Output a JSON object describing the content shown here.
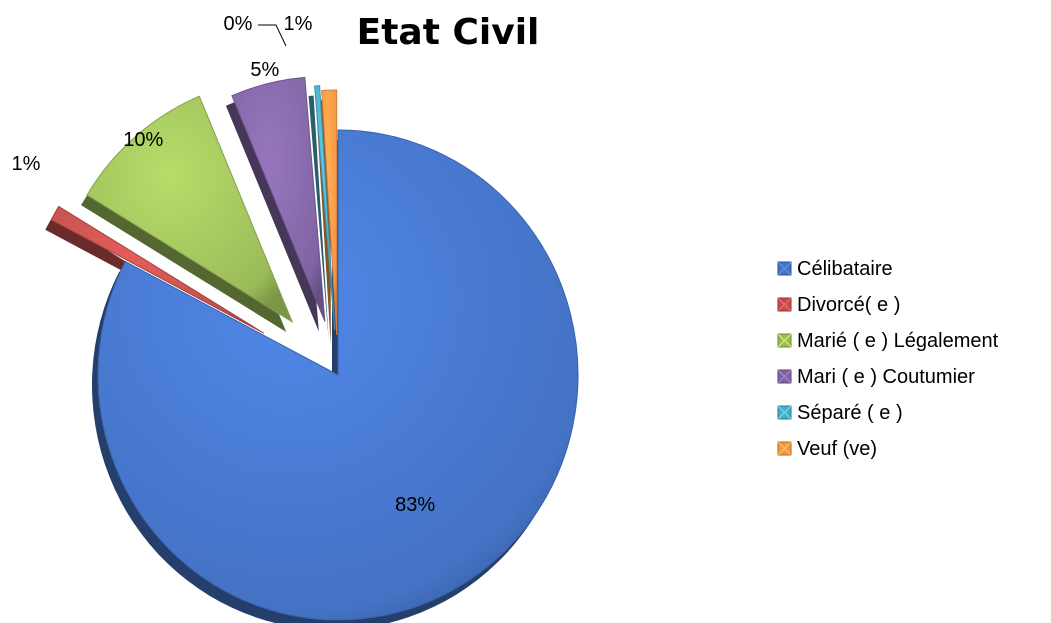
{
  "chart_data": {
    "type": "pie",
    "title": "Etat Civil",
    "categories": [
      "Célibataire",
      "Divorcé( e )",
      "Marié ( e ) Légalement",
      "Mari ( e ) Coutumier",
      "Séparé ( e )",
      "Veuf (ve)"
    ],
    "values": [
      83,
      1,
      10,
      5,
      0,
      1
    ],
    "value_labels": [
      "83%",
      "1%",
      "10%",
      "5%",
      "0%",
      "1%"
    ],
    "colors": [
      "#4472c4",
      "#c0504d",
      "#9bbb59",
      "#8064a2",
      "#4bacc6",
      "#f79646"
    ],
    "legend_position": "right",
    "exploded": true,
    "style": "3d"
  }
}
